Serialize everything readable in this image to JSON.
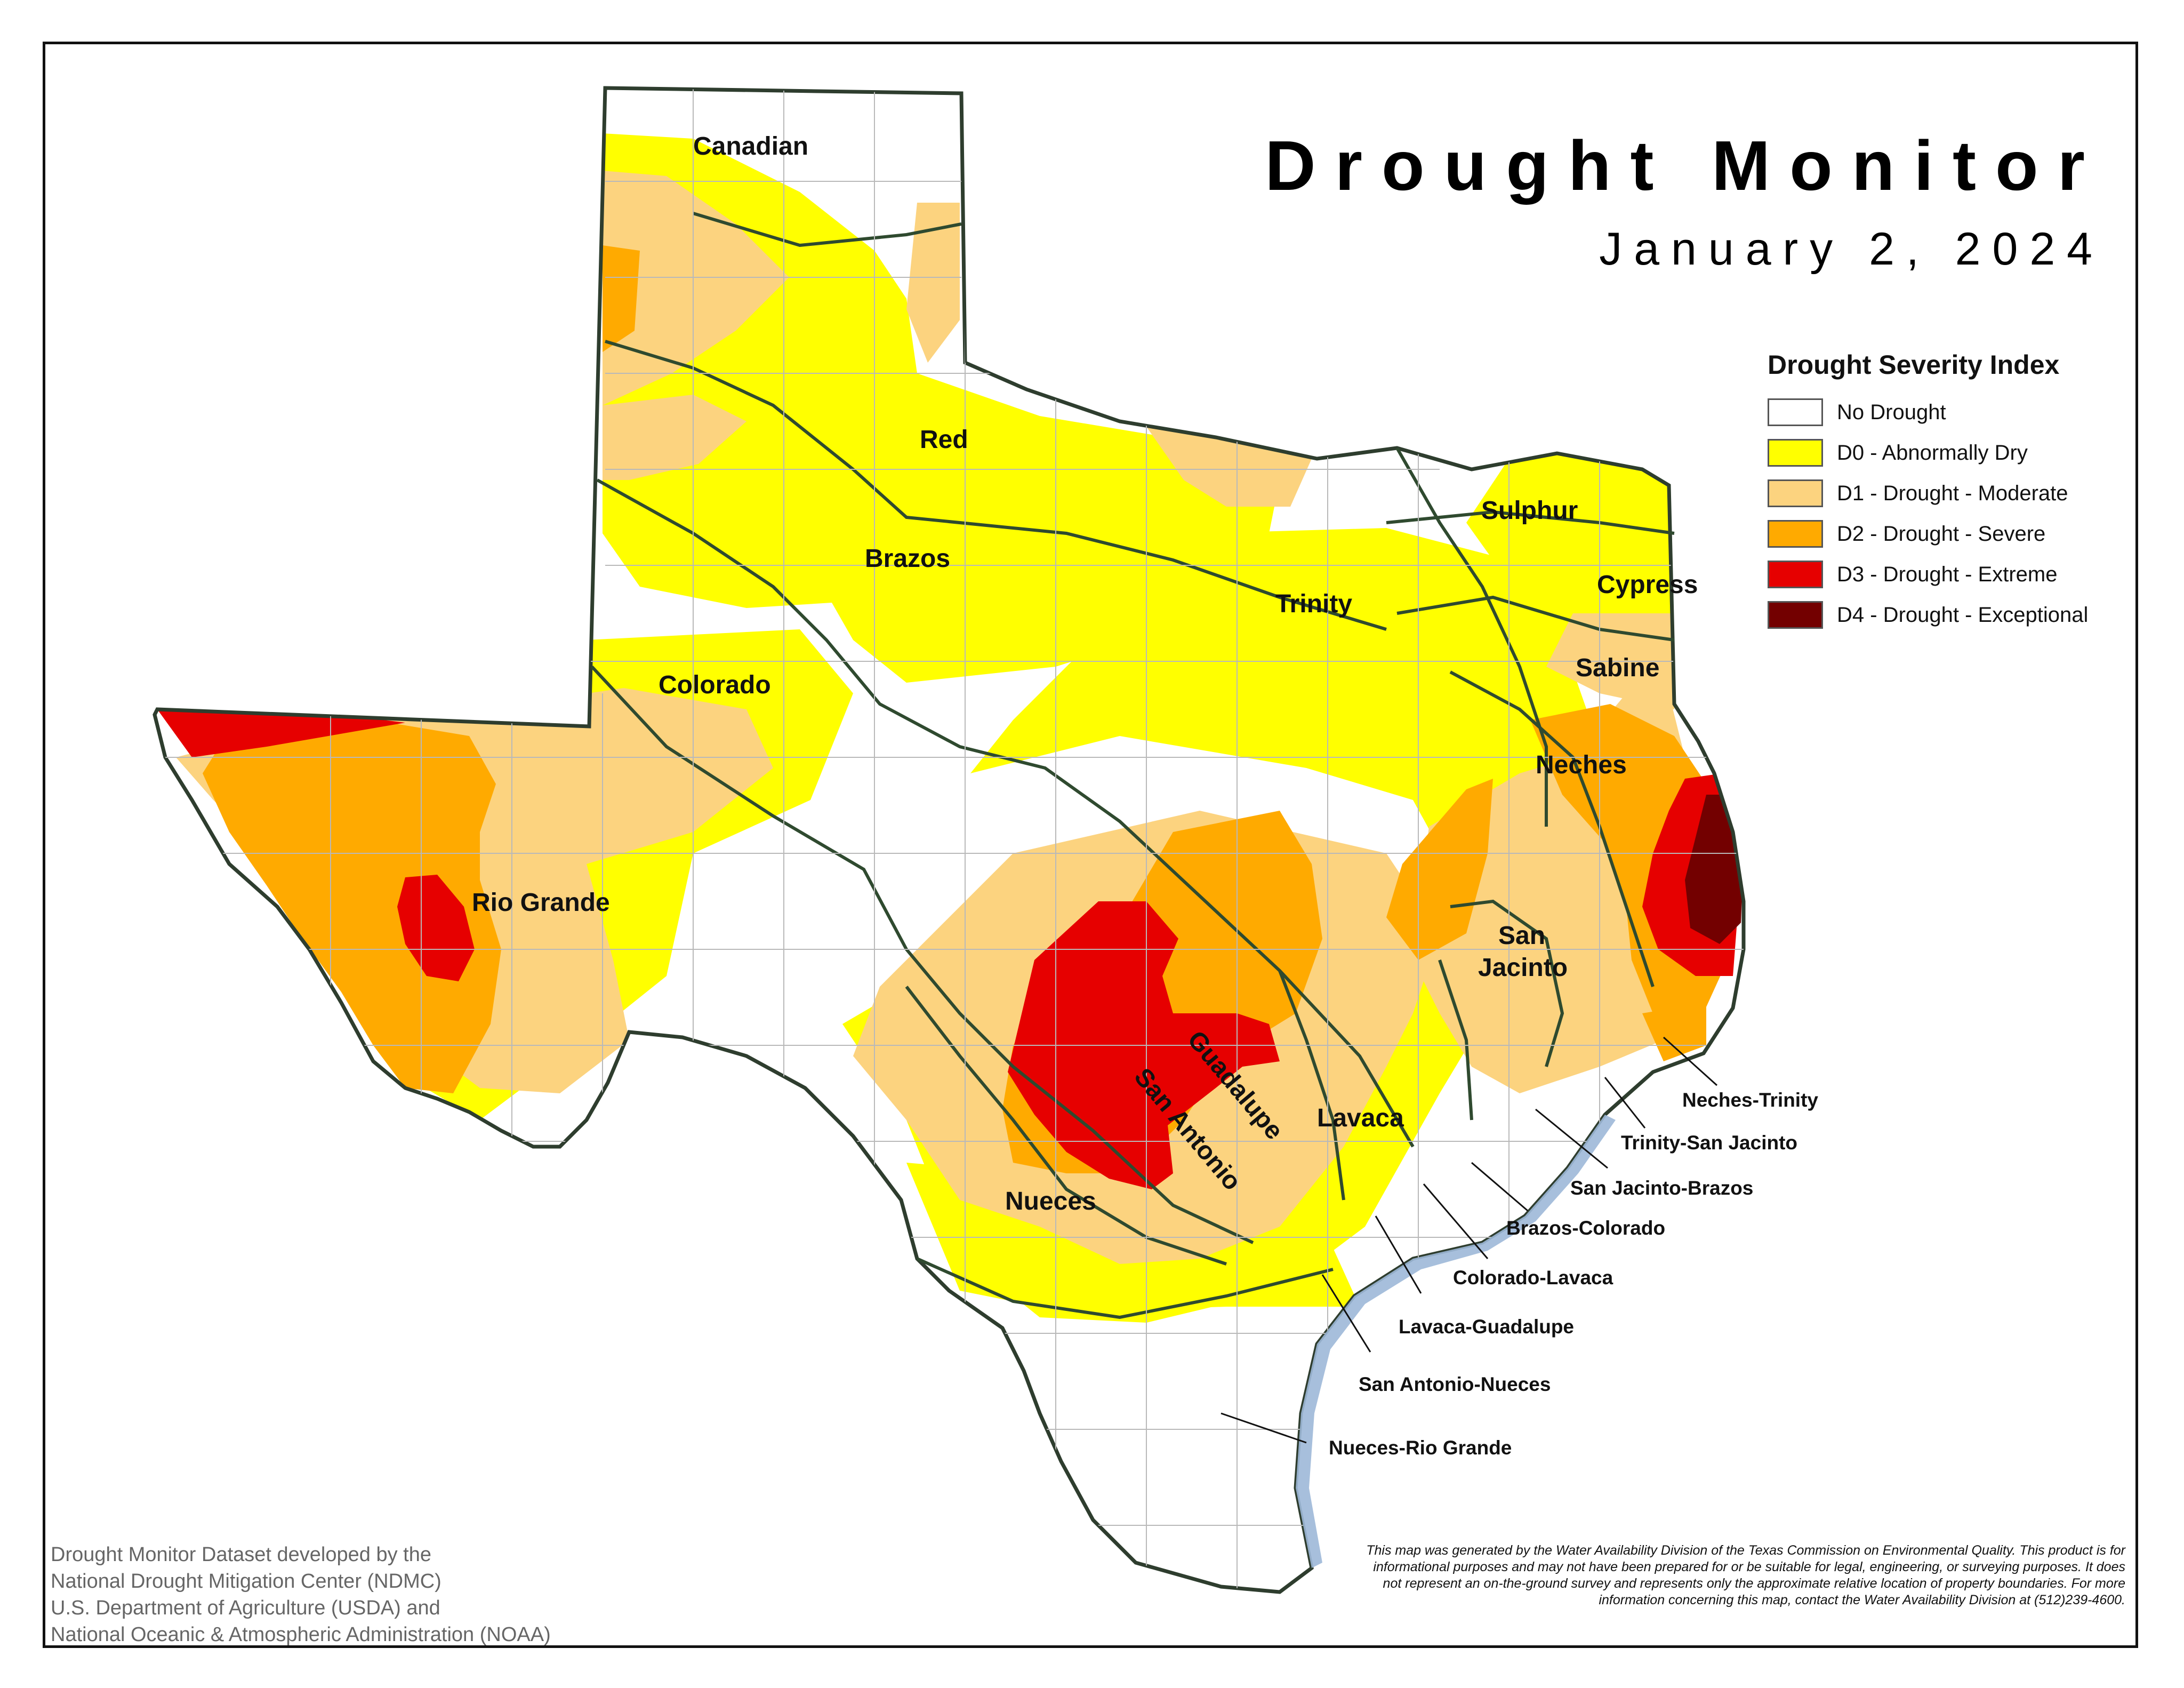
{
  "title": "Drought Monitor",
  "date": "January 2, 2024",
  "legend": {
    "title": "Drought Severity Index",
    "items": [
      {
        "label": "No Drought",
        "color": "#ffffff"
      },
      {
        "label": "D0 - Abnormally Dry",
        "color": "#ffff00"
      },
      {
        "label": "D1 - Drought - Moderate",
        "color": "#fcd37f"
      },
      {
        "label": "D2 - Drought - Severe",
        "color": "#ffaa00"
      },
      {
        "label": "D3 - Drought - Extreme",
        "color": "#e60000"
      },
      {
        "label": "D4 - Drought - Exceptional",
        "color": "#730000"
      }
    ]
  },
  "basins": {
    "canadian": "Canadian",
    "red": "Red",
    "brazos": "Brazos",
    "colorado": "Colorado",
    "trinity": "Trinity",
    "sulphur": "Sulphur",
    "cypress": "Cypress",
    "sabine": "Sabine",
    "neches": "Neches",
    "san_jacinto_1": "San",
    "san_jacinto_2": "Jacinto",
    "rio_grande": "Rio Grande",
    "guadalupe": "Guadalupe",
    "san_antonio": "San Antonio",
    "lavaca": "Lavaca",
    "nueces": "Nueces"
  },
  "coastal_basins": {
    "neches_trinity": "Neches-Trinity",
    "trinity_san_jacinto": "Trinity-San Jacinto",
    "san_jacinto_brazos": "San Jacinto-Brazos",
    "brazos_colorado": "Brazos-Colorado",
    "colorado_lavaca": "Colorado-Lavaca",
    "lavaca_guadalupe": "Lavaca-Guadalupe",
    "san_antonio_nueces": "San Antonio-Nueces",
    "nueces_rio_grande": "Nueces-Rio Grande"
  },
  "credits": [
    "Drought Monitor Dataset developed by the",
    "National Drought Mitigation Center (NDMC)",
    "U.S. Department of Agriculture (USDA) and",
    "National Oceanic & Atmospheric Administration (NOAA)"
  ],
  "disclaimer": "This map was generated by the Water Availability Division of the Texas Commission on Environmental Quality. This product is for informational purposes and may not have been prepared for or be suitable for legal, engineering, or surveying purposes. It does not represent an on-the-ground survey and represents only the approximate relative location of property boundaries. For more information concerning this map, contact the Water Availability Division at (512)239-4600."
}
